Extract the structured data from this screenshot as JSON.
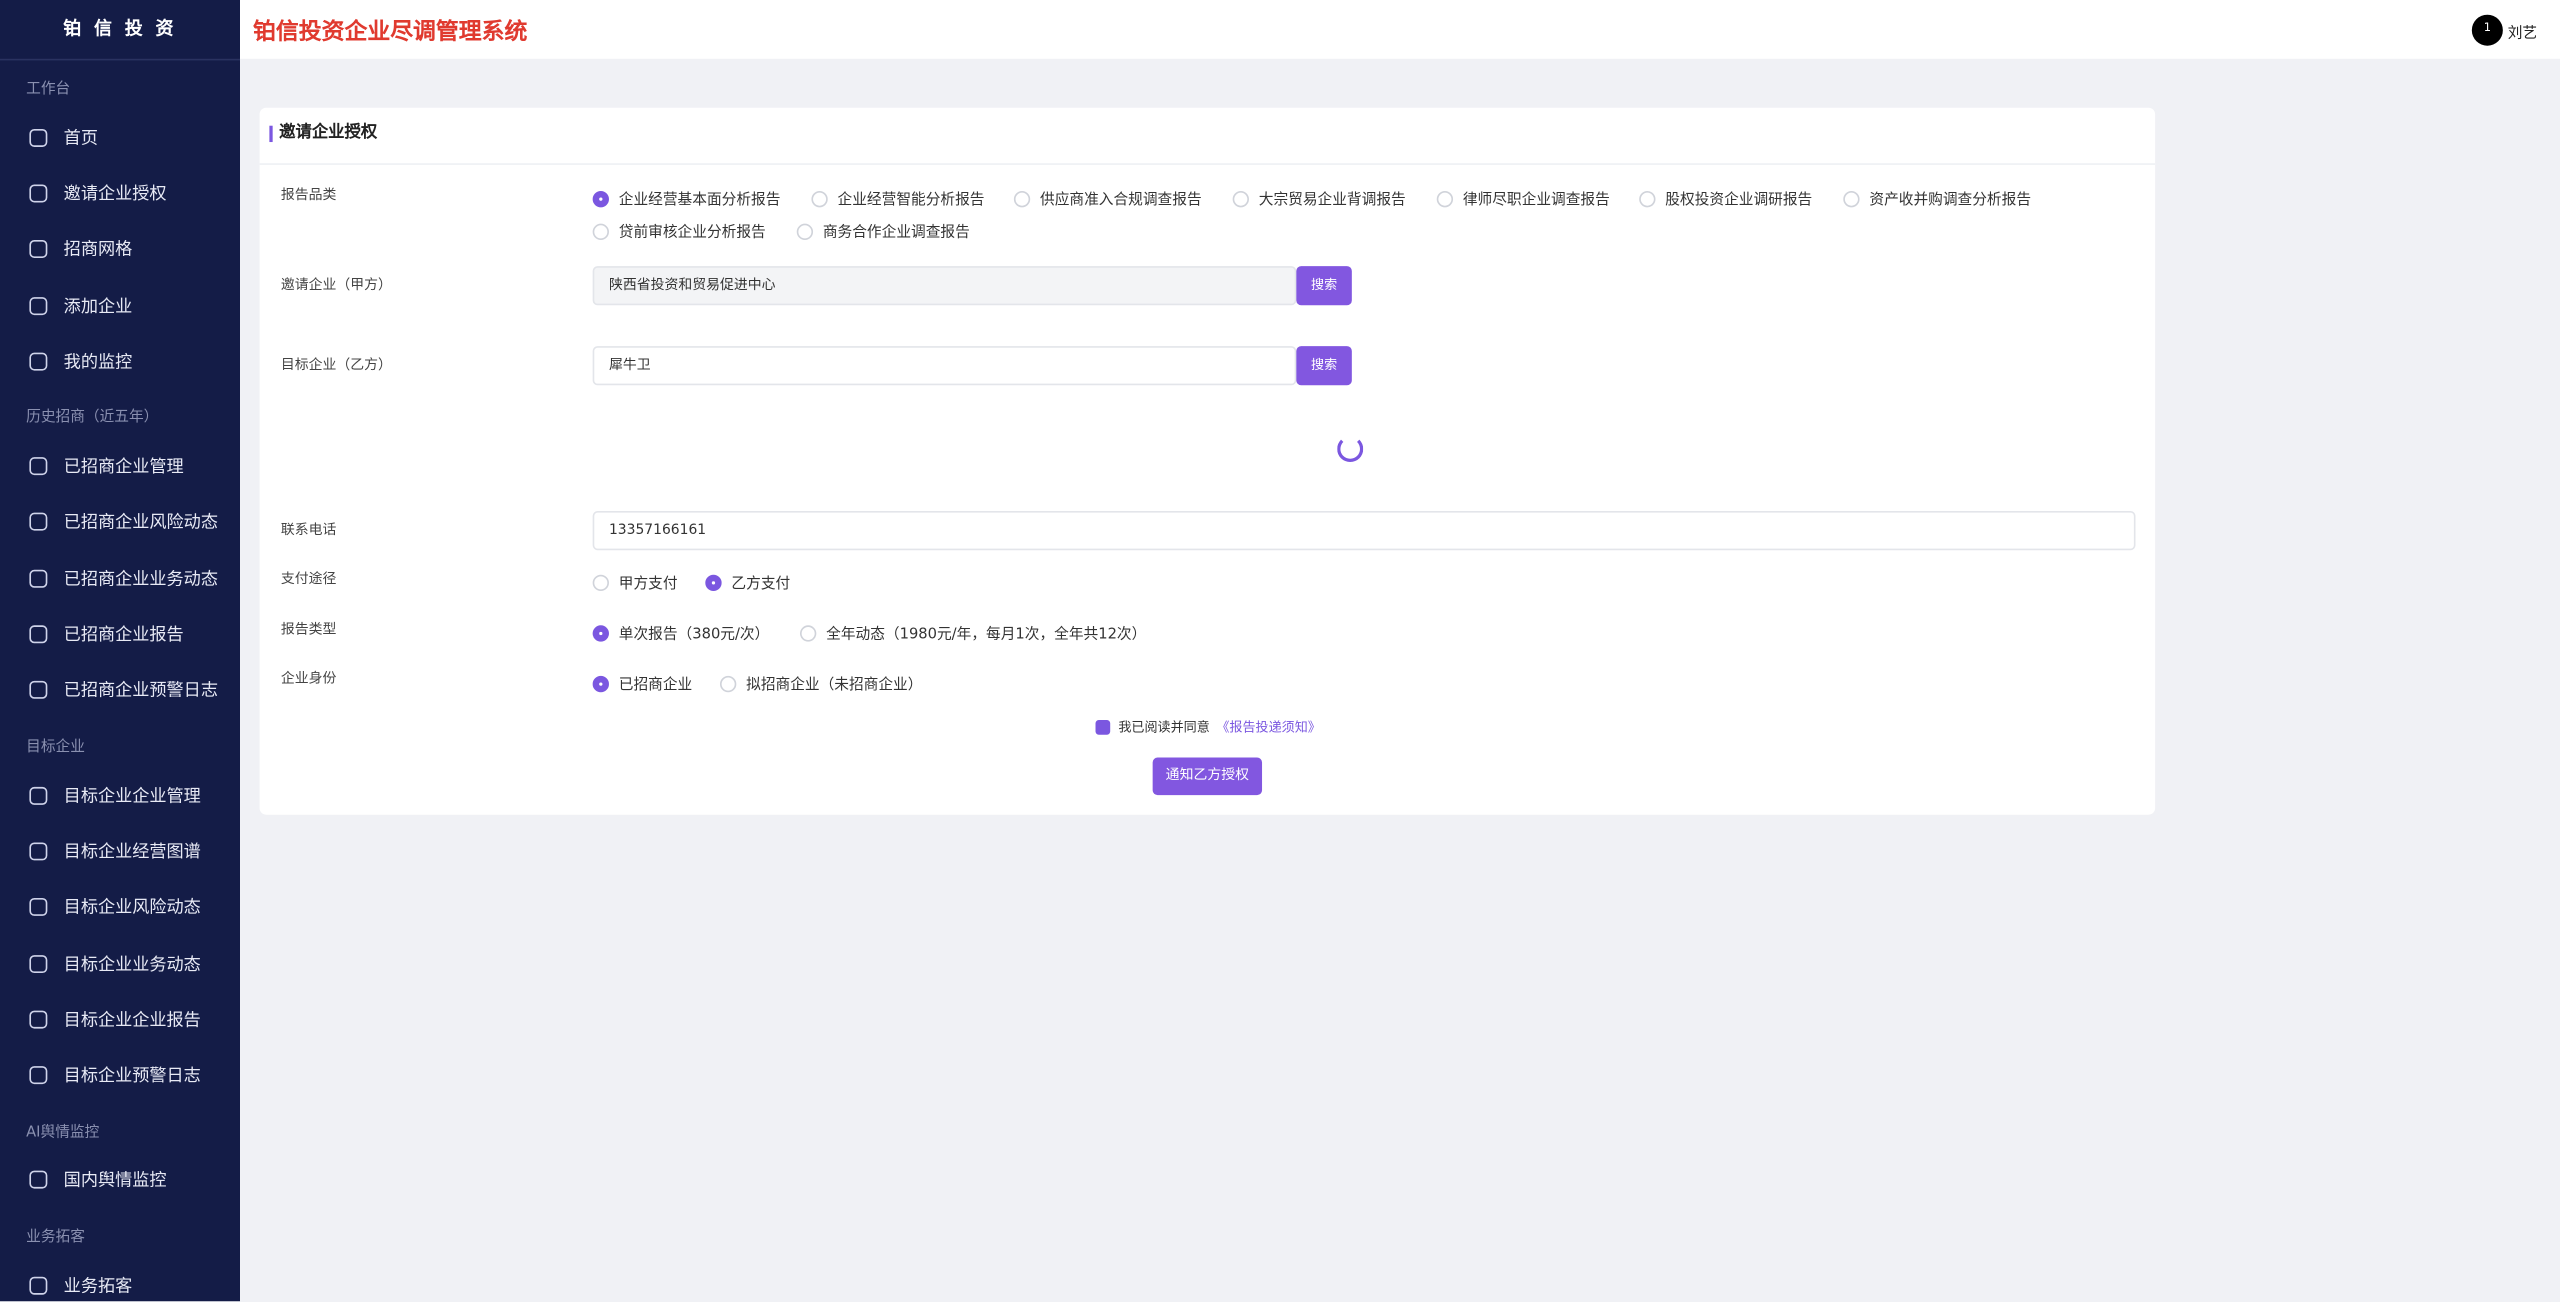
{
  "sidebar": {
    "brand": "铂 信 投 资",
    "groups": [
      {
        "title": "工作台",
        "items": [
          "首页",
          "邀请企业授权",
          "招商网格",
          "添加企业",
          "我的监控"
        ]
      },
      {
        "title": "历史招商（近五年）",
        "items": [
          "已招商企业管理",
          "已招商企业风险动态",
          "已招商企业业务动态",
          "已招商企业报告",
          "已招商企业预警日志"
        ]
      },
      {
        "title": "目标企业",
        "items": [
          "目标企业企业管理",
          "目标企业经营图谱",
          "目标企业风险动态",
          "目标企业业务动态",
          "目标企业企业报告",
          "目标企业预警日志"
        ]
      },
      {
        "title": "AI舆情监控",
        "items": [
          "国内舆情监控"
        ]
      },
      {
        "title": "业务拓客",
        "items": [
          "业务拓客"
        ]
      }
    ]
  },
  "header": {
    "title": "铂信投资企业尽调管理系统",
    "avatar": "1",
    "user": "刘艺"
  },
  "form": {
    "title": "邀请企业授权",
    "report_category": {
      "label": "报告品类",
      "options": [
        "企业经营基本面分析报告",
        "企业经营智能分析报告",
        "供应商准入合规调查报告",
        "大宗贸易企业背调报告",
        "律师尽职企业调查报告",
        "股权投资企业调研报告",
        "资产收并购调查分析报告",
        "贷前审核企业分析报告",
        "商务合作企业调查报告"
      ],
      "selected": 0
    },
    "party_a": {
      "label": "邀请企业（甲方）",
      "value": "陕西省投资和贸易促进中心",
      "button": "搜索"
    },
    "party_b": {
      "label": "目标企业（乙方）",
      "value": "犀牛卫",
      "button": "搜索"
    },
    "phone": {
      "label": "联系电话",
      "value": "13357166161"
    },
    "payment": {
      "label": "支付途径",
      "options": [
        "甲方支付",
        "乙方支付"
      ],
      "selected": 1
    },
    "report_type": {
      "label": "报告类型",
      "options": [
        "单次报告（380元/次）",
        "全年动态（1980元/年，每月1次，全年共12次）"
      ],
      "selected": 0
    },
    "identity": {
      "label": "企业身份",
      "options": [
        "已招商企业",
        "拟招商企业（未招商企业）"
      ],
      "selected": 0
    },
    "agreement": {
      "text": "我已阅读并同意",
      "link": "《报告投递须知》"
    },
    "submit": "通知乙方授权"
  }
}
